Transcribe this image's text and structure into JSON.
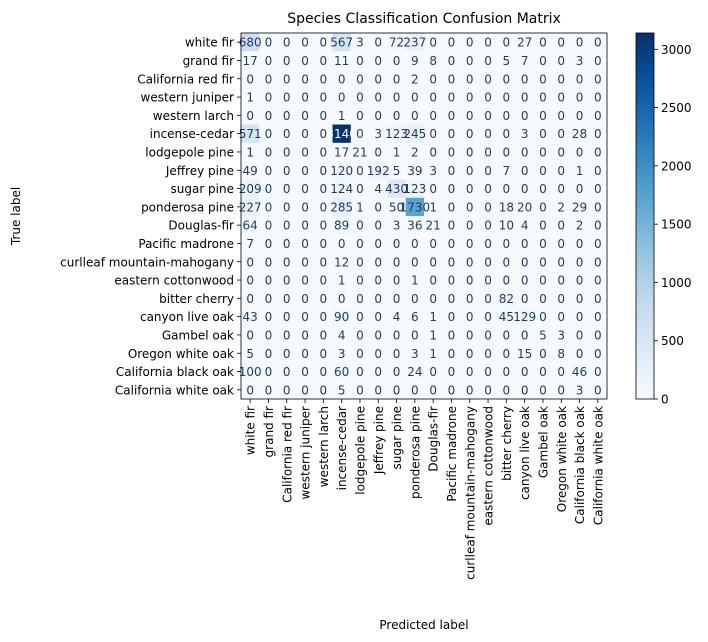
{
  "chart_data": {
    "type": "heatmap",
    "title": "Species Classification Confusion Matrix",
    "xlabel": "Predicted label",
    "ylabel": "True label",
    "categories": [
      "white fir",
      "grand fir",
      "California red fir",
      "western juniper",
      "western larch",
      "incense-cedar",
      "lodgepole pine",
      "Jeffrey pine",
      "sugar pine",
      "ponderosa pine",
      "Douglas-fir",
      "Pacific madrone",
      "curlleaf mountain-mahogany",
      "eastern cottonwood",
      "bitter cherry",
      "canyon live oak",
      "Gambel oak",
      "Oregon white oak",
      "California black oak",
      "California white oak"
    ],
    "matrix": [
      [
        680,
        0,
        0,
        0,
        0,
        567,
        3,
        0,
        72,
        237,
        0,
        0,
        0,
        0,
        0,
        27,
        0,
        0,
        0,
        0
      ],
      [
        17,
        0,
        0,
        0,
        0,
        11,
        0,
        0,
        0,
        9,
        8,
        0,
        0,
        0,
        5,
        7,
        0,
        0,
        3,
        0
      ],
      [
        0,
        0,
        0,
        0,
        0,
        0,
        0,
        0,
        0,
        2,
        0,
        0,
        0,
        0,
        0,
        0,
        0,
        0,
        0,
        0
      ],
      [
        1,
        0,
        0,
        0,
        0,
        0,
        0,
        0,
        0,
        0,
        0,
        0,
        0,
        0,
        0,
        0,
        0,
        0,
        0,
        0
      ],
      [
        0,
        0,
        0,
        0,
        0,
        1,
        0,
        0,
        0,
        0,
        0,
        0,
        0,
        0,
        0,
        0,
        0,
        0,
        0,
        0
      ],
      [
        571,
        0,
        0,
        0,
        0,
        3140,
        0,
        3,
        123,
        245,
        0,
        0,
        0,
        0,
        0,
        3,
        0,
        0,
        28,
        0
      ],
      [
        1,
        0,
        0,
        0,
        0,
        17,
        21,
        0,
        1,
        2,
        0,
        0,
        0,
        0,
        0,
        0,
        0,
        0,
        0,
        0
      ],
      [
        49,
        0,
        0,
        0,
        0,
        120,
        0,
        192,
        5,
        39,
        3,
        0,
        0,
        0,
        7,
        0,
        0,
        0,
        1,
        0
      ],
      [
        209,
        0,
        0,
        0,
        0,
        124,
        0,
        4,
        430,
        123,
        0,
        0,
        0,
        0,
        0,
        0,
        0,
        0,
        0,
        0
      ],
      [
        227,
        0,
        0,
        0,
        0,
        285,
        1,
        0,
        50,
        1730,
        1,
        0,
        0,
        0,
        18,
        20,
        0,
        2,
        29,
        0
      ],
      [
        64,
        0,
        0,
        0,
        0,
        89,
        0,
        0,
        3,
        36,
        21,
        0,
        0,
        0,
        10,
        4,
        0,
        0,
        2,
        0
      ],
      [
        7,
        0,
        0,
        0,
        0,
        0,
        0,
        0,
        0,
        0,
        0,
        0,
        0,
        0,
        0,
        0,
        0,
        0,
        0,
        0
      ],
      [
        0,
        0,
        0,
        0,
        0,
        12,
        0,
        0,
        0,
        0,
        0,
        0,
        0,
        0,
        0,
        0,
        0,
        0,
        0,
        0
      ],
      [
        0,
        0,
        0,
        0,
        0,
        1,
        0,
        0,
        0,
        1,
        0,
        0,
        0,
        0,
        0,
        0,
        0,
        0,
        0,
        0
      ],
      [
        0,
        0,
        0,
        0,
        0,
        0,
        0,
        0,
        0,
        0,
        0,
        0,
        0,
        0,
        82,
        0,
        0,
        0,
        0,
        0
      ],
      [
        43,
        0,
        0,
        0,
        0,
        90,
        0,
        0,
        4,
        6,
        1,
        0,
        0,
        0,
        45,
        129,
        0,
        0,
        0,
        0
      ],
      [
        0,
        0,
        0,
        0,
        0,
        4,
        0,
        0,
        0,
        0,
        1,
        0,
        0,
        0,
        0,
        0,
        5,
        3,
        0,
        0
      ],
      [
        5,
        0,
        0,
        0,
        0,
        3,
        0,
        0,
        0,
        3,
        1,
        0,
        0,
        0,
        0,
        15,
        0,
        8,
        0,
        0
      ],
      [
        100,
        0,
        0,
        0,
        0,
        60,
        0,
        0,
        0,
        24,
        0,
        0,
        0,
        0,
        0,
        0,
        0,
        0,
        46,
        0
      ],
      [
        0,
        0,
        0,
        0,
        0,
        5,
        0,
        0,
        0,
        0,
        0,
        0,
        0,
        0,
        0,
        0,
        0,
        0,
        3,
        0
      ]
    ],
    "colorbar": {
      "colormap": "Blues",
      "range": [
        0,
        3140
      ],
      "ticks": [
        0,
        500,
        1000,
        1500,
        2000,
        2500,
        3000
      ]
    }
  }
}
